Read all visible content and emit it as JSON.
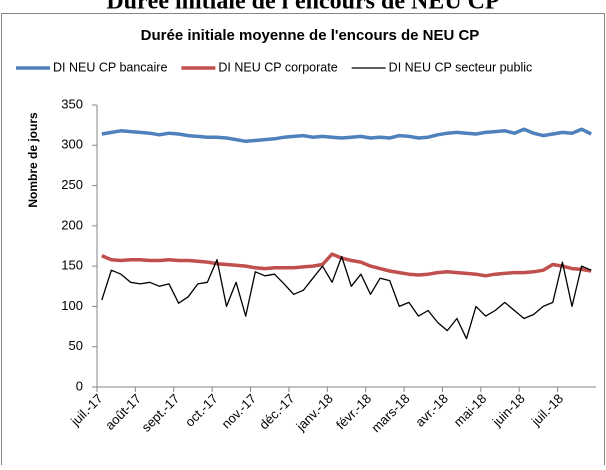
{
  "page_title": "Durée initiale de l'encours de NEU CP",
  "chart_data": {
    "type": "line",
    "title": "Durée initiale moyenne de l'encours de NEU CP",
    "y_label": "Nombre de jours",
    "categories": [
      "juil.-17",
      null,
      null,
      null,
      "août-17",
      null,
      null,
      null,
      "sept.-17",
      null,
      null,
      null,
      "oct.-17",
      null,
      null,
      null,
      "nov.-17",
      null,
      null,
      null,
      "déc.-17",
      null,
      null,
      null,
      "janv.-18",
      null,
      null,
      null,
      "févr.-18",
      null,
      null,
      null,
      "mars-18",
      null,
      null,
      null,
      "avr.-18",
      null,
      null,
      null,
      "mai-18",
      null,
      null,
      null,
      "juin-18",
      null,
      null,
      null,
      "juil.-18",
      null,
      null,
      null
    ],
    "series": [
      {
        "name": "DI NEU CP bancaire",
        "color": "#4f81bd",
        "width": 3.5,
        "values": [
          314,
          316,
          318,
          317,
          316,
          315,
          313,
          315,
          314,
          312,
          311,
          310,
          310,
          309,
          307,
          305,
          306,
          307,
          308,
          310,
          311,
          312,
          310,
          311,
          310,
          309,
          310,
          311,
          309,
          310,
          309,
          312,
          311,
          309,
          310,
          313,
          315,
          316,
          315,
          314,
          316,
          317,
          318,
          315,
          320,
          315,
          312,
          314,
          316,
          315,
          320,
          314
        ]
      },
      {
        "name": "DI NEU CP corporate",
        "color": "#c0504d",
        "width": 3.5,
        "values": [
          163,
          158,
          157,
          158,
          158,
          157,
          157,
          158,
          157,
          157,
          156,
          155,
          153,
          152,
          151,
          150,
          148,
          147,
          148,
          148,
          148,
          149,
          150,
          152,
          165,
          160,
          157,
          155,
          150,
          147,
          144,
          142,
          140,
          139,
          140,
          142,
          143,
          142,
          141,
          140,
          138,
          140,
          141,
          142,
          142,
          143,
          145,
          152,
          150,
          147,
          146,
          144
        ]
      },
      {
        "name": "DI NEU CP secteur public",
        "color": "#000000",
        "width": 1.3,
        "values": [
          108,
          145,
          140,
          130,
          128,
          130,
          125,
          128,
          104,
          112,
          128,
          130,
          158,
          100,
          130,
          88,
          143,
          138,
          140,
          128,
          115,
          120,
          135,
          150,
          130,
          162,
          125,
          140,
          115,
          135,
          132,
          100,
          105,
          88,
          95,
          80,
          70,
          85,
          60,
          100,
          88,
          95,
          105,
          95,
          85,
          90,
          100,
          105,
          155,
          100,
          150,
          145
        ]
      }
    ],
    "ylim": [
      0,
      350
    ],
    "yticks": [
      0,
      50,
      100,
      150,
      200,
      250,
      300,
      350
    ],
    "grid": false,
    "legend": "top"
  }
}
